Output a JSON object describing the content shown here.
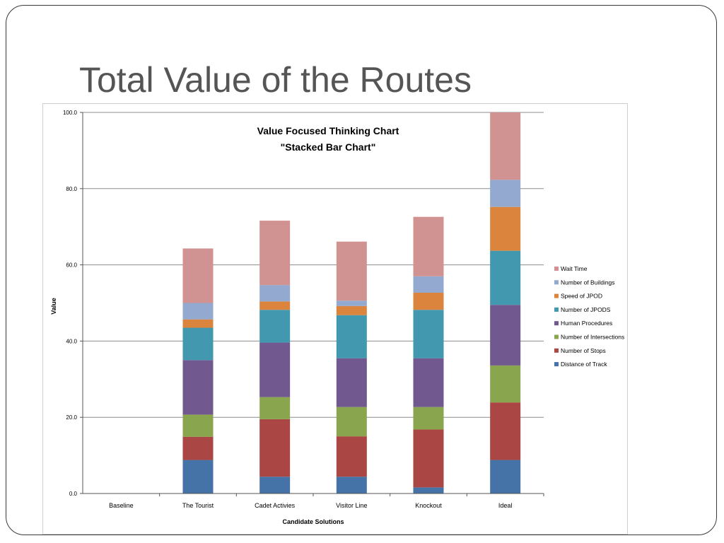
{
  "slide": {
    "title": "Total Value of the Routes"
  },
  "chart_data": {
    "type": "bar",
    "stacked": true,
    "title": "Value Focused Thinking Chart",
    "subtitle": "\"Stacked Bar Chart\"",
    "xlabel": "Candidate Solutions",
    "ylabel": "Value",
    "ylim": [
      0,
      100
    ],
    "yticks": [
      "0.0",
      "20.0",
      "40.0",
      "60.0",
      "80.0",
      "100.0"
    ],
    "grid": true,
    "legend_position": "right",
    "categories": [
      "Baseline",
      "The Tourist",
      "Cadet Activies",
      "Visitor Line",
      "Knockout",
      "Ideal"
    ],
    "series": [
      {
        "name": "Distance of Track",
        "color": "#4573a7",
        "values": [
          0,
          8.8,
          4.4,
          4.4,
          1.6,
          8.8
        ]
      },
      {
        "name": "Number of Stops",
        "color": "#aa4643",
        "values": [
          0,
          6.1,
          15.1,
          10.6,
          15.2,
          15.1
        ]
      },
      {
        "name": "Number of Intersections",
        "color": "#89a54e",
        "values": [
          0,
          5.8,
          5.8,
          7.7,
          5.9,
          9.7
        ]
      },
      {
        "name": "Human Procedures",
        "color": "#71588f",
        "values": [
          0,
          14.3,
          14.3,
          12.8,
          12.8,
          15.9
        ]
      },
      {
        "name": "Number of JPODS",
        "color": "#4198af",
        "values": [
          0,
          8.5,
          8.6,
          11.3,
          12.7,
          14.2
        ]
      },
      {
        "name": "Speed of JPOD",
        "color": "#db843d",
        "values": [
          0,
          2.2,
          2.2,
          2.4,
          4.5,
          11.5
        ]
      },
      {
        "name": "Number of Buildings",
        "color": "#93a9cf",
        "values": [
          0,
          4.3,
          4.3,
          1.4,
          4.3,
          7.1
        ]
      },
      {
        "name": "Wait Time",
        "color": "#d19392",
        "values": [
          0,
          14.3,
          16.9,
          15.5,
          15.6,
          17.7
        ]
      }
    ]
  }
}
